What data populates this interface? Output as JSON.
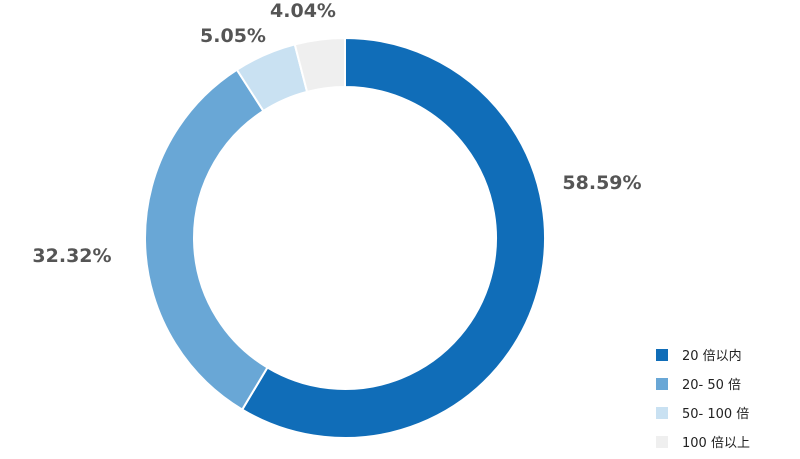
{
  "chart_data": {
    "type": "pie",
    "donut": true,
    "categories": [
      "20 倍以内",
      "20- 50 倍",
      "50- 100 倍",
      "100 倍以上"
    ],
    "values": [
      58.59,
      32.32,
      5.05,
      4.04
    ],
    "value_labels": [
      "58.59%",
      "32.32%",
      "5.05%",
      "4.04%"
    ],
    "colors": [
      "#106db8",
      "#69a7d6",
      "#c9e1f2",
      "#efefef"
    ],
    "legend": "bottom-right"
  }
}
